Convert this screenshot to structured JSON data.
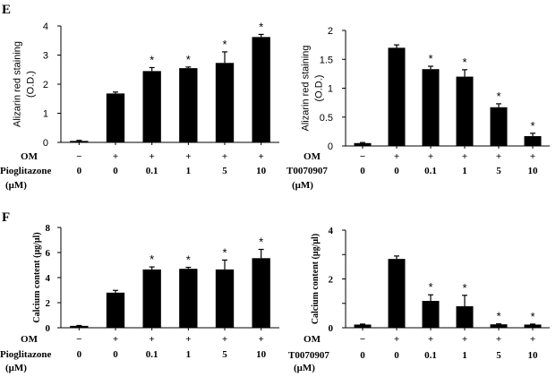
{
  "panel_labels": {
    "E": "E",
    "F": "F"
  },
  "chart_data": [
    {
      "id": "E-left",
      "type": "bar",
      "categories": [
        "1",
        "2",
        "3",
        "4",
        "5",
        "6"
      ],
      "values": [
        0.05,
        1.68,
        2.45,
        2.55,
        2.73,
        3.62
      ],
      "errors": [
        0.02,
        0.05,
        0.12,
        0.04,
        0.38,
        0.09
      ],
      "significant": [
        false,
        false,
        true,
        true,
        true,
        true
      ],
      "sig_marker": "*",
      "ylabel_lines": [
        "Alizarin red staining",
        "(O.D.)"
      ],
      "ylim": [
        0,
        4
      ],
      "yticks": [
        "0",
        "1",
        "2",
        "3",
        "4"
      ],
      "row1_label": "OM",
      "row1_values": [
        "−",
        "+",
        "+",
        "+",
        "+",
        "+"
      ],
      "row2_label_lines": [
        "Pioglitazone",
        "(μM)"
      ],
      "row2_values": [
        "0",
        "0",
        "0.1",
        "1",
        "5",
        "10"
      ]
    },
    {
      "id": "E-right",
      "type": "bar",
      "categories": [
        "1",
        "2",
        "3",
        "4",
        "5",
        "6"
      ],
      "values": [
        0.05,
        1.7,
        1.33,
        1.2,
        0.67,
        0.17
      ],
      "errors": [
        0.01,
        0.05,
        0.05,
        0.12,
        0.06,
        0.05
      ],
      "significant": [
        false,
        false,
        true,
        true,
        true,
        true
      ],
      "sig_marker": "*",
      "ylabel_lines": [
        "Alizarin red staining",
        "(O.D.)"
      ],
      "ylim": [
        0,
        2
      ],
      "yticks": [
        "0",
        "0.5",
        "1",
        "1.5",
        "2"
      ],
      "row1_label": "OM",
      "row1_values": [
        "−",
        "+",
        "+",
        "+",
        "+",
        "+"
      ],
      "row2_label_lines": [
        "T0070907",
        "(μM)"
      ],
      "row2_values": [
        "0",
        "0",
        "0.1",
        "1",
        "5",
        "10"
      ]
    },
    {
      "id": "F-left",
      "type": "bar",
      "categories": [
        "1",
        "2",
        "3",
        "4",
        "5",
        "6"
      ],
      "values": [
        0.15,
        2.8,
        4.65,
        4.7,
        4.65,
        5.55
      ],
      "errors": [
        0.03,
        0.18,
        0.2,
        0.12,
        0.75,
        0.7
      ],
      "significant": [
        false,
        false,
        true,
        true,
        true,
        true
      ],
      "sig_marker": "*",
      "ylabel_lines": [
        "Calcium content (μg/μl)"
      ],
      "ylim": [
        0,
        8
      ],
      "yticks": [
        "0",
        "2",
        "4",
        "6",
        "8"
      ],
      "row1_label": "OM",
      "row1_values": [
        "−",
        "+",
        "+",
        "+",
        "+",
        "+"
      ],
      "row2_label_lines": [
        "Pioglitazone",
        "(μM)"
      ],
      "row2_values": [
        "0",
        "0",
        "0.1",
        "1",
        "5",
        "10"
      ]
    },
    {
      "id": "F-right",
      "type": "bar",
      "categories": [
        "1",
        "2",
        "3",
        "4",
        "5",
        "6"
      ],
      "values": [
        0.13,
        2.82,
        1.1,
        0.88,
        0.14,
        0.13
      ],
      "errors": [
        0.02,
        0.12,
        0.25,
        0.45,
        0.02,
        0.02
      ],
      "significant": [
        false,
        false,
        true,
        true,
        true,
        true
      ],
      "sig_marker": "*",
      "ylabel_lines": [
        "Calcium content (μg/μl)"
      ],
      "ylim": [
        0,
        4
      ],
      "yticks": [
        "0",
        "",
        "2",
        "",
        "4"
      ],
      "row1_label": "OM",
      "row1_values": [
        "−",
        "+",
        "+",
        "+",
        "+",
        "+"
      ],
      "row2_label_lines": [
        "T0070907",
        "(μM)"
      ],
      "row2_values": [
        "0",
        "0",
        "0.1",
        "1",
        "5",
        "10"
      ]
    }
  ]
}
